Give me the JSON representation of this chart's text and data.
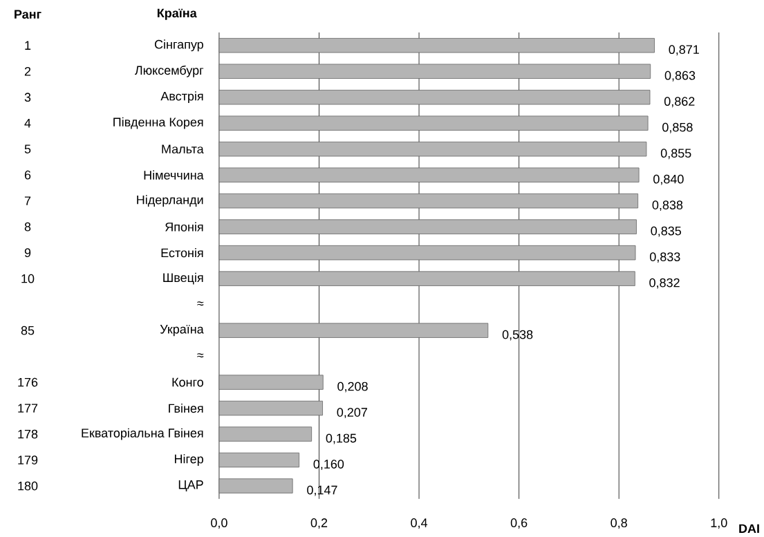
{
  "chart_data": {
    "type": "bar",
    "orientation": "horizontal",
    "ylabel": "Країна",
    "xlabel": "DAI",
    "categories": [
      "Сінгапур",
      "Люксембург",
      "Австрія",
      "Південна Корея",
      "Мальта",
      "Німеччина",
      "Нідерланди",
      "Японія",
      "Естонія",
      "Швеція",
      "≈",
      "Україна",
      "≈",
      "Конго",
      "Гвінея",
      "Екваторіальна Гвінея",
      "Нігер",
      "ЦАР"
    ],
    "values": [
      0.871,
      0.863,
      0.862,
      0.858,
      0.855,
      0.84,
      0.838,
      0.835,
      0.833,
      0.832,
      null,
      0.538,
      null,
      0.208,
      0.207,
      0.185,
      0.16,
      0.147
    ],
    "value_labels": [
      "0,871",
      "0,863",
      "0,862",
      "0,858",
      "0,855",
      "0,840",
      "0,838",
      "0,835",
      "0,833",
      "0,832",
      null,
      "0,538",
      null,
      "0,208",
      "0,207",
      "0,185",
      "0,160",
      "0,147"
    ],
    "color": "#b4b4b4",
    "xlim": [
      0,
      1
    ],
    "xticks": [
      {
        "value": 0,
        "label": "0,0"
      },
      {
        "value": 0.2,
        "label": "0,2"
      },
      {
        "value": 0.4,
        "label": "0,4"
      },
      {
        "value": 0.6,
        "label": "0,6"
      },
      {
        "value": 0.8,
        "label": "0,8"
      },
      {
        "value": 1,
        "label": "1,0"
      }
    ],
    "grid": "x",
    "annotations": [
      "Ранг",
      "1",
      "2",
      "3",
      "4",
      "5",
      "6",
      "7",
      "8",
      "9",
      "10",
      "85",
      "176",
      "177",
      "178",
      "179",
      "180"
    ]
  }
}
